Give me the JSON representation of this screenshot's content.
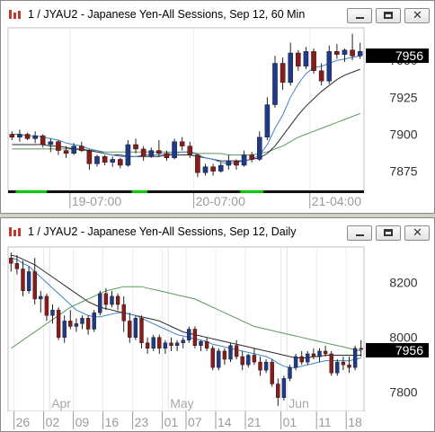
{
  "windows": [
    {
      "title": "1 / JYAU2 - Japanese Yen-All Sessions, Sep 12, 60 Min",
      "last_price": "7956",
      "colors": {
        "up": "#1f3a8a",
        "down": "#8b1a1a",
        "ma_fast": "#3f83c4",
        "ma_mid": "#2b2b2b",
        "ma_slow": "#5a9a5a",
        "session": "#00cc00"
      },
      "chart_data": {
        "type": "candlestick",
        "y_ticks": [
          "7950",
          "7925",
          "7900",
          "7875"
        ],
        "y_tick_values": [
          7950,
          7925,
          7900,
          7875
        ],
        "ylim": [
          7862,
          7972
        ],
        "x_ticks": [
          "19-07:00",
          "20-07:00",
          "21-04:00"
        ],
        "x_tick_index": [
          8,
          24,
          39
        ],
        "session_marks": [
          [
            1,
            4
          ],
          [
            16,
            17
          ],
          [
            30,
            32
          ]
        ],
        "ohlc": [
          [
            7900,
            7902,
            7896,
            7898
          ],
          [
            7898,
            7903,
            7895,
            7900
          ],
          [
            7900,
            7901,
            7896,
            7897
          ],
          [
            7897,
            7902,
            7894,
            7899
          ],
          [
            7899,
            7900,
            7891,
            7893
          ],
          [
            7893,
            7897,
            7888,
            7895
          ],
          [
            7895,
            7896,
            7886,
            7889
          ],
          [
            7889,
            7892,
            7884,
            7887
          ],
          [
            7887,
            7894,
            7886,
            7892
          ],
          [
            7892,
            7895,
            7888,
            7889
          ],
          [
            7889,
            7890,
            7876,
            7880
          ],
          [
            7880,
            7886,
            7878,
            7885
          ],
          [
            7885,
            7886,
            7879,
            7881
          ],
          [
            7881,
            7885,
            7878,
            7883
          ],
          [
            7883,
            7884,
            7877,
            7879
          ],
          [
            7879,
            7896,
            7878,
            7893
          ],
          [
            7893,
            7897,
            7887,
            7890
          ],
          [
            7890,
            7892,
            7882,
            7885
          ],
          [
            7885,
            7891,
            7884,
            7889
          ],
          [
            7889,
            7896,
            7885,
            7887
          ],
          [
            7887,
            7889,
            7882,
            7884
          ],
          [
            7884,
            7897,
            7883,
            7895
          ],
          [
            7895,
            7898,
            7889,
            7892
          ],
          [
            7892,
            7895,
            7884,
            7886
          ],
          [
            7886,
            7887,
            7871,
            7874
          ],
          [
            7874,
            7880,
            7872,
            7878
          ],
          [
            7878,
            7880,
            7872,
            7875
          ],
          [
            7875,
            7881,
            7874,
            7879
          ],
          [
            7879,
            7886,
            7876,
            7882
          ],
          [
            7882,
            7883,
            7876,
            7879
          ],
          [
            7879,
            7889,
            7878,
            7886
          ],
          [
            7886,
            7888,
            7881,
            7883
          ],
          [
            7883,
            7902,
            7882,
            7898
          ],
          [
            7898,
            7925,
            7896,
            7920
          ],
          [
            7920,
            7953,
            7918,
            7948
          ],
          [
            7948,
            7952,
            7930,
            7935
          ],
          [
            7935,
            7962,
            7933,
            7955
          ],
          [
            7955,
            7957,
            7943,
            7946
          ],
          [
            7946,
            7959,
            7944,
            7956
          ],
          [
            7956,
            7958,
            7941,
            7943
          ],
          [
            7943,
            7948,
            7933,
            7936
          ],
          [
            7936,
            7960,
            7934,
            7956
          ],
          [
            7956,
            7961,
            7951,
            7954
          ],
          [
            7954,
            7958,
            7949,
            7957
          ],
          [
            7957,
            7968,
            7950,
            7953
          ],
          [
            7953,
            7962,
            7951,
            7956
          ]
        ],
        "ma_fast": [
          7900,
          7900,
          7899,
          7899,
          7898,
          7897,
          7896,
          7894,
          7893,
          7892,
          7890,
          7889,
          7887,
          7886,
          7885,
          7885,
          7885,
          7886,
          7886,
          7886,
          7887,
          7887,
          7888,
          7888,
          7886,
          7884,
          7883,
          7881,
          7880,
          7881,
          7882,
          7883,
          7886,
          7893,
          7904,
          7913,
          7925,
          7934,
          7941,
          7945,
          7946,
          7948,
          7950,
          7951,
          7952,
          7953
        ],
        "ma_mid": [
          7893,
          7893,
          7893,
          7893,
          7893,
          7892,
          7892,
          7891,
          7890,
          7890,
          7889,
          7888,
          7887,
          7886,
          7886,
          7885,
          7885,
          7885,
          7885,
          7885,
          7886,
          7886,
          7886,
          7886,
          7885,
          7884,
          7883,
          7882,
          7882,
          7882,
          7882,
          7883,
          7884,
          7887,
          7892,
          7899,
          7906,
          7913,
          7919,
          7924,
          7929,
          7933,
          7937,
          7940,
          7942,
          7944
        ],
        "ma_slow": [
          7890,
          7890,
          7890,
          7890,
          7890,
          7890,
          7890,
          7890,
          7890,
          7889,
          7889,
          7889,
          7888,
          7888,
          7888,
          7888,
          7888,
          7888,
          7888,
          7888,
          7888,
          7888,
          7888,
          7888,
          7887,
          7887,
          7887,
          7887,
          7886,
          7886,
          7886,
          7886,
          7887,
          7888,
          7890,
          7892,
          7895,
          7898,
          7900,
          7902,
          7904,
          7906,
          7908,
          7910,
          7912,
          7914
        ]
      }
    },
    {
      "title": "1 / JYAU2 - Japanese Yen-All Sessions, Sep 12, Daily",
      "last_price": "7956",
      "colors": {
        "up": "#1f3a8a",
        "down": "#8b1a1a",
        "ma_fast": "#3f83c4",
        "ma_mid": "#2b2b2b",
        "ma_slow": "#5a9a5a"
      },
      "chart_data": {
        "type": "candlestick",
        "y_ticks": [
          "8200",
          "8000",
          "7800"
        ],
        "y_tick_values": [
          8200,
          8000,
          7800
        ],
        "ylim": [
          7730,
          8330
        ],
        "x_ticks": [
          "26",
          "02",
          "09",
          "16",
          "23",
          "01",
          "07",
          "14",
          "21",
          "01",
          "11",
          "18"
        ],
        "x_tick_index": [
          1,
          6,
          11,
          16,
          21,
          26,
          30,
          35,
          40,
          46,
          52,
          57
        ],
        "month_labels": [
          "Apr",
          "May",
          "Jun"
        ],
        "month_index": [
          7,
          27,
          47
        ],
        "ohlc": [
          [
            8290,
            8310,
            8240,
            8270
          ],
          [
            8270,
            8300,
            8230,
            8250
          ],
          [
            8250,
            8280,
            8150,
            8170
          ],
          [
            8170,
            8260,
            8160,
            8240
          ],
          [
            8240,
            8290,
            8120,
            8140
          ],
          [
            8140,
            8170,
            8090,
            8150
          ],
          [
            8150,
            8160,
            8060,
            8080
          ],
          [
            8080,
            8120,
            8050,
            8100
          ],
          [
            8100,
            8110,
            7990,
            8000
          ],
          [
            8000,
            8080,
            7980,
            8060
          ],
          [
            8060,
            8100,
            8030,
            8040
          ],
          [
            8040,
            8070,
            8020,
            8050
          ],
          [
            8050,
            8080,
            8030,
            8070
          ],
          [
            8070,
            8080,
            8010,
            8030
          ],
          [
            8030,
            8100,
            8020,
            8090
          ],
          [
            8090,
            8170,
            8080,
            8160
          ],
          [
            8160,
            8180,
            8100,
            8120
          ],
          [
            8120,
            8170,
            8110,
            8150
          ],
          [
            8150,
            8160,
            8100,
            8120
          ],
          [
            8120,
            8150,
            8020,
            8060
          ],
          [
            8060,
            8090,
            7980,
            8000
          ],
          [
            8000,
            8080,
            7990,
            8070
          ],
          [
            8070,
            8080,
            7960,
            7980
          ],
          [
            7980,
            8000,
            7940,
            7960
          ],
          [
            7960,
            8010,
            7950,
            8000
          ],
          [
            8000,
            8010,
            7940,
            7960
          ],
          [
            7960,
            7990,
            7940,
            7980
          ],
          [
            7980,
            8000,
            7950,
            7970
          ],
          [
            7970,
            7990,
            7950,
            7980
          ],
          [
            7980,
            8000,
            7960,
            7990
          ],
          [
            7990,
            8040,
            7980,
            8030
          ],
          [
            8030,
            8040,
            7960,
            7970
          ],
          [
            7970,
            7990,
            7950,
            7985
          ],
          [
            7985,
            8000,
            7950,
            7960
          ],
          [
            7960,
            7970,
            7880,
            7890
          ],
          [
            7890,
            7960,
            7880,
            7950
          ],
          [
            7950,
            7960,
            7900,
            7920
          ],
          [
            7920,
            7980,
            7910,
            7970
          ],
          [
            7970,
            7990,
            7920,
            7930
          ],
          [
            7930,
            7950,
            7880,
            7900
          ],
          [
            7900,
            7940,
            7890,
            7935
          ],
          [
            7935,
            7960,
            7900,
            7910
          ],
          [
            7910,
            7930,
            7860,
            7880
          ],
          [
            7880,
            7920,
            7870,
            7910
          ],
          [
            7910,
            7920,
            7820,
            7830
          ],
          [
            7830,
            7850,
            7750,
            7780
          ],
          [
            7780,
            7860,
            7770,
            7850
          ],
          [
            7850,
            7900,
            7840,
            7890
          ],
          [
            7890,
            7940,
            7880,
            7930
          ],
          [
            7930,
            7950,
            7900,
            7910
          ],
          [
            7910,
            7950,
            7900,
            7940
          ],
          [
            7940,
            7960,
            7920,
            7930
          ],
          [
            7930,
            7960,
            7910,
            7950
          ],
          [
            7950,
            7970,
            7930,
            7940
          ],
          [
            7940,
            7950,
            7860,
            7870
          ],
          [
            7870,
            7920,
            7860,
            7910
          ],
          [
            7910,
            7930,
            7880,
            7900
          ],
          [
            7900,
            7930,
            7870,
            7890
          ],
          [
            7890,
            7970,
            7880,
            7960
          ],
          [
            7960,
            7990,
            7930,
            7956
          ]
        ],
        "ma_fast": [
          8290,
          8285,
          8270,
          8260,
          8240,
          8220,
          8200,
          8180,
          8160,
          8140,
          8120,
          8100,
          8090,
          8080,
          8075,
          8075,
          8080,
          8085,
          8090,
          8090,
          8085,
          8080,
          8070,
          8060,
          8050,
          8040,
          8030,
          8020,
          8010,
          8005,
          8000,
          7995,
          7990,
          7985,
          7975,
          7970,
          7965,
          7960,
          7955,
          7950,
          7945,
          7940,
          7935,
          7930,
          7920,
          7905,
          7895,
          7890,
          7890,
          7895,
          7900,
          7905,
          7910,
          7915,
          7915,
          7915,
          7915,
          7915,
          7920,
          7925
        ],
        "ma_mid": [
          8300,
          8295,
          8285,
          8275,
          8265,
          8250,
          8235,
          8220,
          8205,
          8190,
          8175,
          8160,
          8145,
          8130,
          8120,
          8110,
          8105,
          8100,
          8095,
          8090,
          8085,
          8080,
          8075,
          8070,
          8065,
          8060,
          8050,
          8040,
          8030,
          8020,
          8015,
          8010,
          8005,
          8000,
          7995,
          7990,
          7985,
          7980,
          7975,
          7970,
          7965,
          7960,
          7955,
          7950,
          7945,
          7940,
          7935,
          7930,
          7925,
          7925,
          7925,
          7930,
          7930,
          7935,
          7935,
          7935,
          7935,
          7935,
          7935,
          7935
        ],
        "ma_slow": [
          7960,
          7975,
          7990,
          8005,
          8020,
          8035,
          8050,
          8065,
          8080,
          8095,
          8110,
          8120,
          8130,
          8140,
          8150,
          8160,
          8170,
          8175,
          8180,
          8185,
          8185,
          8185,
          8185,
          8180,
          8175,
          8170,
          8165,
          8160,
          8155,
          8150,
          8145,
          8140,
          8130,
          8120,
          8110,
          8100,
          8090,
          8080,
          8070,
          8060,
          8050,
          8040,
          8035,
          8030,
          8025,
          8020,
          8015,
          8010,
          8005,
          8000,
          7995,
          7990,
          7985,
          7980,
          7975,
          7970,
          7965,
          7960,
          7955,
          7950
        ]
      }
    }
  ]
}
